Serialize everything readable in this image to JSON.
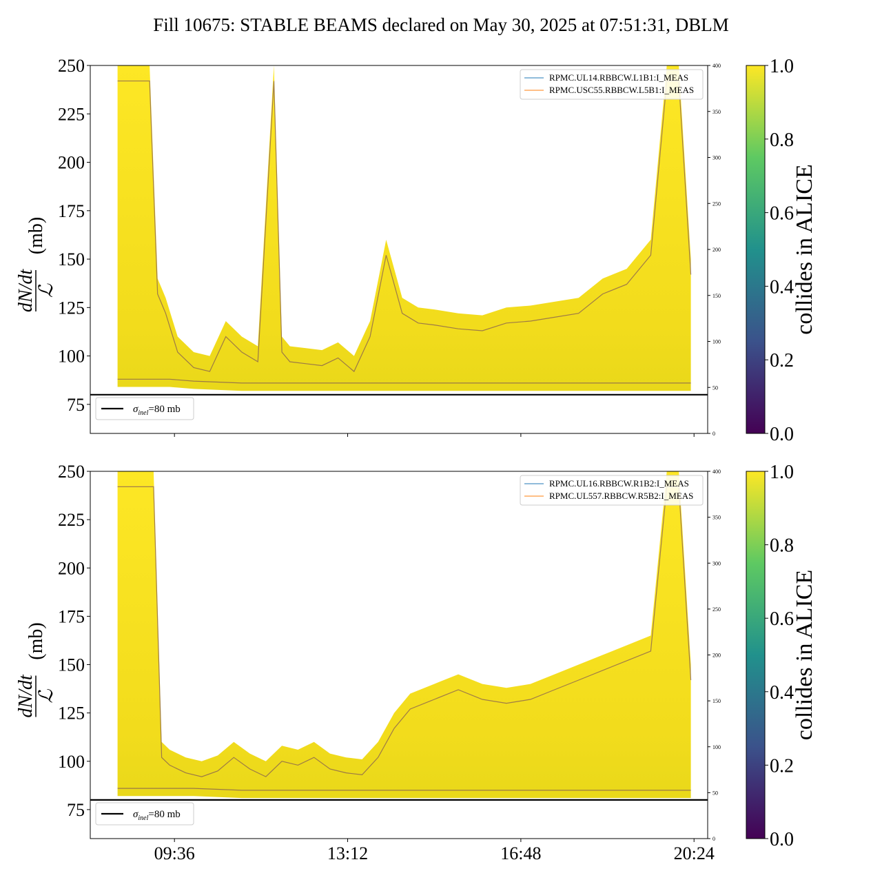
{
  "title": "Fill 10675: STABLE BEAMS declared on May 30, 2025 at 07:51:31, DBLM",
  "colorbar": {
    "label": "collides in ALICE",
    "ticks": [
      "0.0",
      "0.2",
      "0.4",
      "0.6",
      "0.8",
      "1.0"
    ],
    "colormap": "viridis",
    "stops": [
      "#440154",
      "#3b528b",
      "#21918c",
      "#5ec962",
      "#fde725"
    ]
  },
  "reference_line": {
    "value": 80,
    "legend_label": "σinel=80 mb",
    "sigma": "σ",
    "subscript": "inel",
    "suffix": "=80 mb",
    "color": "#000000"
  },
  "ylabel": {
    "numerator": "dN/dt",
    "denominator": "ℒ",
    "unit": "(mb)"
  },
  "x_tick_labels": [
    "09:36",
    "13:12",
    "16:48",
    "20:24"
  ],
  "chart_data": [
    {
      "type": "area",
      "panel": "top",
      "ylim": [
        60,
        250
      ],
      "yticks": [
        75,
        100,
        125,
        150,
        175,
        200,
        225,
        250
      ],
      "right_axis": {
        "ylim": [
          0,
          400
        ],
        "ticks": [
          0,
          50,
          100,
          150,
          200,
          250,
          300,
          350,
          400
        ]
      },
      "xlim": [
        "07:51",
        "20:41"
      ],
      "xticks": [
        "09:36",
        "13:12",
        "16:48",
        "20:24"
      ],
      "legend": [
        "RPMC.UL14.RBBCW.L1B1:I_MEAS",
        "RPMC.USC55.RBBCW.L5B1:I_MEAS"
      ],
      "legend_colors": [
        "#1f77b4",
        "#ff7f0e"
      ],
      "series": [
        {
          "name": "upper envelope",
          "x": [
            "08:25",
            "08:40",
            "08:50",
            "09:05",
            "09:15",
            "09:25",
            "09:40",
            "10:00",
            "10:20",
            "10:40",
            "11:00",
            "11:20",
            "11:40",
            "11:50",
            "12:00",
            "12:20",
            "12:40",
            "13:00",
            "13:20",
            "13:40",
            "14:00",
            "14:20",
            "14:40",
            "15:00",
            "15:30",
            "16:00",
            "16:30",
            "17:00",
            "17:30",
            "18:00",
            "18:30",
            "19:00",
            "19:30",
            "19:50",
            "20:05",
            "20:20"
          ],
          "values": [
            250,
            250,
            250,
            250,
            140,
            130,
            110,
            102,
            100,
            118,
            110,
            105,
            250,
            110,
            105,
            104,
            103,
            107,
            100,
            118,
            160,
            130,
            125,
            124,
            122,
            121,
            125,
            126,
            128,
            130,
            140,
            145,
            160,
            250,
            250,
            150
          ]
        },
        {
          "name": "lower envelope",
          "x": [
            "08:25",
            "09:00",
            "09:30",
            "10:00",
            "11:00",
            "12:00",
            "13:00",
            "14:00",
            "15:00",
            "16:00",
            "17:00",
            "18:00",
            "19:00",
            "20:00",
            "20:20"
          ],
          "values": [
            84,
            84,
            84,
            83,
            82,
            82,
            82,
            82,
            82,
            82,
            82,
            82,
            82,
            82,
            82
          ]
        }
      ]
    },
    {
      "type": "area",
      "panel": "bottom",
      "ylim": [
        60,
        250
      ],
      "yticks": [
        75,
        100,
        125,
        150,
        175,
        200,
        225,
        250
      ],
      "right_axis": {
        "ylim": [
          0,
          400
        ],
        "ticks": [
          0,
          50,
          100,
          150,
          200,
          250,
          300,
          350,
          400
        ]
      },
      "xlim": [
        "07:51",
        "20:41"
      ],
      "xticks": [
        "09:36",
        "13:12",
        "16:48",
        "20:24"
      ],
      "legend": [
        "RPMC.UL16.RBBCW.R1B2:I_MEAS",
        "RPMC.UL557.RBBCW.R5B2:I_MEAS"
      ],
      "legend_colors": [
        "#1f77b4",
        "#ff7f0e"
      ],
      "series": [
        {
          "name": "upper envelope",
          "x": [
            "08:25",
            "08:40",
            "08:55",
            "09:10",
            "09:20",
            "09:30",
            "09:50",
            "10:10",
            "10:30",
            "10:50",
            "11:10",
            "11:30",
            "11:50",
            "12:10",
            "12:30",
            "12:50",
            "13:10",
            "13:30",
            "13:50",
            "14:10",
            "14:30",
            "15:00",
            "15:30",
            "16:00",
            "16:30",
            "17:00",
            "17:30",
            "18:00",
            "18:30",
            "19:00",
            "19:30",
            "19:50",
            "20:05",
            "20:20"
          ],
          "values": [
            250,
            250,
            250,
            250,
            110,
            106,
            102,
            100,
            103,
            110,
            104,
            100,
            108,
            106,
            110,
            104,
            102,
            101,
            110,
            125,
            135,
            140,
            145,
            140,
            138,
            140,
            145,
            150,
            155,
            160,
            165,
            250,
            250,
            150
          ]
        },
        {
          "name": "lower envelope",
          "x": [
            "08:25",
            "09:00",
            "10:00",
            "11:00",
            "12:00",
            "13:00",
            "14:00",
            "15:00",
            "16:00",
            "17:00",
            "18:00",
            "19:00",
            "20:00",
            "20:20"
          ],
          "values": [
            82,
            82,
            82,
            81,
            81,
            81,
            81,
            81,
            81,
            81,
            81,
            81,
            81,
            81
          ]
        }
      ]
    }
  ]
}
